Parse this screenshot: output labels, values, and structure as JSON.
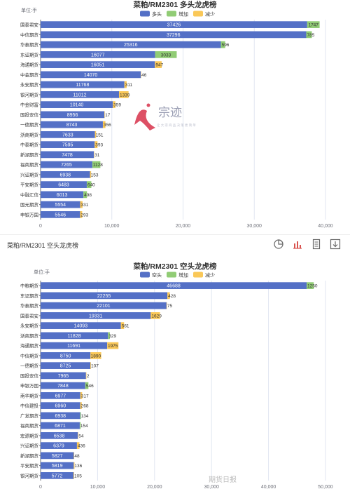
{
  "colors": {
    "primary": "#5470c6",
    "increase": "#91cc75",
    "decrease": "#fac858",
    "axis": "#6e7079",
    "grid": "#e0e6f1"
  },
  "watermark": {
    "mark": "宗迹",
    "tagline": "让大宗商品决策更简单"
  },
  "footer_watermark": "期货日报",
  "section2": {
    "title": "菜粕/RM2301 空头龙虎榜"
  },
  "toolbar": {
    "icons": [
      "pie-chart-icon",
      "bar-chart-icon",
      "document-icon",
      "download-icon"
    ]
  },
  "chart_data": [
    {
      "type": "bar",
      "orientation": "horizontal",
      "stacked": true,
      "title": "菜粕/RM2301 多头龙虎榜",
      "unit_label": "单位:手",
      "legend": [
        "多头",
        "增加",
        "减少"
      ],
      "legend_position": "top-center",
      "categories": [
        "国泰君安",
        "中信期货",
        "华泰期货",
        "东证期货",
        "海通期货",
        "中金期货",
        "永安期货",
        "银河期货",
        "中金财富",
        "国投安信",
        "一德期货",
        "浙商期货",
        "中泰期货",
        "新湖期货",
        "福商期货",
        "兴证期货",
        "平安期货",
        "中融汇信",
        "国元期货",
        "申银万国"
      ],
      "series": [
        {
          "name": "多头",
          "values": [
            37426,
            37296,
            25316,
            16077,
            16051,
            14070,
            11768,
            11012,
            10140,
            8956,
            8743,
            7633,
            7595,
            7478,
            7265,
            6938,
            6483,
            6013,
            5554,
            5546
          ]
        },
        {
          "name": "增加",
          "values": [
            1747,
            785,
            596,
            3033,
            0,
            0,
            0,
            0,
            0,
            0,
            0,
            0,
            0,
            0,
            1128,
            0,
            640,
            498,
            0,
            0
          ]
        },
        {
          "name": "减少",
          "values": [
            0,
            0,
            0,
            0,
            947,
            46,
            311,
            1339,
            359,
            17,
            356,
            151,
            393,
            31,
            0,
            153,
            0,
            0,
            331,
            293
          ]
        }
      ],
      "xlim": [
        0,
        40000
      ],
      "xticks": [
        "0",
        "10,000",
        "20,000",
        "30,000",
        "40,000"
      ],
      "grid": true
    },
    {
      "type": "bar",
      "orientation": "horizontal",
      "stacked": true,
      "title": "菜粕/RM2301 空头龙虎榜",
      "unit_label": "单位:手",
      "legend": [
        "空头",
        "增加",
        "减少"
      ],
      "legend_position": "top-center",
      "categories": [
        "中粮期货",
        "东证期货",
        "华泰期货",
        "国泰君安",
        "永安期货",
        "浙商期货",
        "海通期货",
        "中信期货",
        "一德期货",
        "国投安信",
        "申银万国",
        "南华期货",
        "中信建投",
        "广发期货",
        "福商期货",
        "宏源期货",
        "兴证期货",
        "新湖期货",
        "平安期货",
        "银河期货"
      ],
      "series": [
        {
          "name": "空头",
          "values": [
            46688,
            22255,
            22101,
            19331,
            14093,
            11828,
            11691,
            8750,
            8725,
            7965,
            7848,
            6977,
            6960,
            6938,
            6871,
            6538,
            6379,
            5827,
            5819,
            5772
          ]
        },
        {
          "name": "增加",
          "values": [
            1250,
            0,
            0,
            0,
            0,
            329,
            0,
            0,
            0,
            0,
            546,
            0,
            0,
            134,
            154,
            0,
            0,
            0,
            0,
            0
          ]
        },
        {
          "name": "减少",
          "values": [
            0,
            428,
            75,
            1629,
            561,
            0,
            1975,
            1890,
            107,
            2,
            0,
            317,
            268,
            0,
            0,
            54,
            436,
            48,
            136,
            105
          ]
        }
      ],
      "xlim": [
        0,
        50000
      ],
      "xticks": [
        "0",
        "10,000",
        "20,000",
        "30,000",
        "40,000",
        "50,000"
      ],
      "grid": true
    }
  ]
}
